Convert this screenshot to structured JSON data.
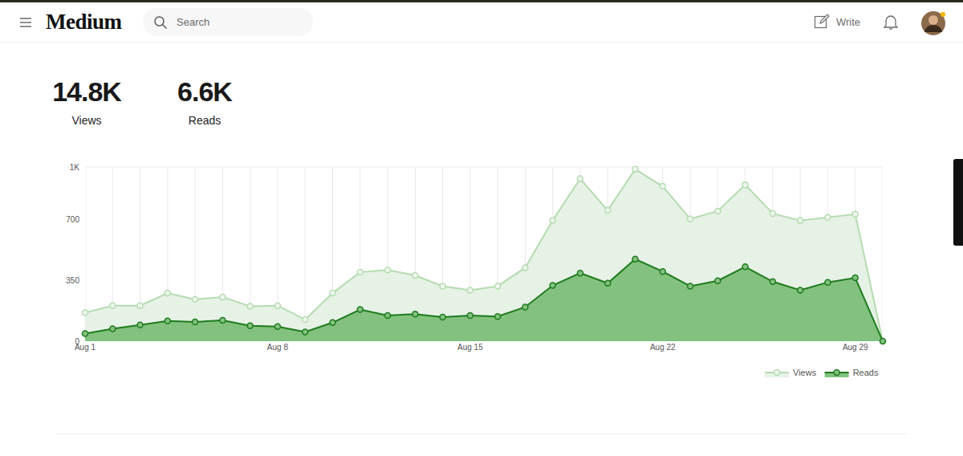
{
  "header": {
    "logo": "Medium",
    "search": "Search",
    "write": "Write"
  },
  "stats": [
    {
      "value": "14.8K",
      "label": "Views"
    },
    {
      "value": "6.6K",
      "label": "Reads"
    }
  ],
  "chart_data": {
    "type": "line",
    "categories": [
      "Aug 1",
      null,
      null,
      null,
      null,
      null,
      null,
      "Aug 8",
      null,
      null,
      null,
      null,
      null,
      null,
      "Aug 15",
      null,
      null,
      null,
      null,
      null,
      null,
      "Aug 22",
      null,
      null,
      null,
      null,
      null,
      null,
      "Aug 29",
      null
    ],
    "series": [
      {
        "name": "Views",
        "color": "#b5dbb1",
        "values": [
          164,
          204,
          204,
          276,
          240,
          253,
          200,
          204,
          124,
          276,
          396,
          409,
          378,
          316,
          293,
          316,
          422,
          693,
          933,
          751,
          987,
          889,
          702,
          747,
          898,
          733,
          693,
          711,
          729,
          0
        ]
      },
      {
        "name": "Reads",
        "color": "#1e7b1e",
        "values": [
          44,
          71,
          93,
          116,
          111,
          120,
          89,
          84,
          53,
          107,
          182,
          147,
          156,
          138,
          147,
          142,
          196,
          320,
          391,
          333,
          471,
          400,
          316,
          347,
          427,
          342,
          293,
          338,
          364,
          0
        ]
      }
    ],
    "ylim": [
      0,
      1000
    ],
    "yticks": [
      0,
      350,
      700,
      {
        "value": 1000,
        "label": "1K"
      }
    ],
    "grid": true,
    "legend": "bottom right",
    "marker": "circle"
  }
}
